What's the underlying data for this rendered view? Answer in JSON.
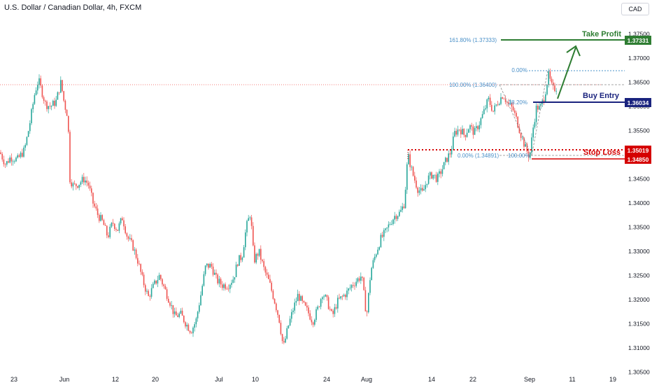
{
  "header": {
    "symbol_title": "U.S. Dollar / Canadian Dollar, 4h, FXCM",
    "currency_button": "CAD"
  },
  "colors": {
    "up": "#26a69a",
    "down": "#ef5350",
    "fib": "#4a90c8",
    "take_profit": "#2e7d32",
    "buy_entry": "#1a237e",
    "stop_loss": "#d50000"
  },
  "chart_data": {
    "type": "candlestick",
    "symbol": "USDCAD",
    "interval": "4h",
    "ylim": [
      1.3045,
      1.378
    ],
    "y_ticks": [
      "1.37500",
      "1.37000",
      "1.36500",
      "1.36000",
      "1.35500",
      "1.35000",
      "1.34500",
      "1.34000",
      "1.33500",
      "1.33000",
      "1.32500",
      "1.32000",
      "1.31500",
      "1.31000",
      "1.30500"
    ],
    "x_ticks": [
      "23",
      "Jun",
      "12",
      "20",
      "Jul",
      "10",
      "24",
      "Aug",
      "14",
      "22",
      "Sep",
      "11",
      "19"
    ],
    "price_path": [
      [
        0,
        1.3505
      ],
      [
        8,
        1.348
      ],
      [
        15,
        1.3495
      ],
      [
        25,
        1.349
      ],
      [
        35,
        1.351
      ],
      [
        42,
        1.356
      ],
      [
        50,
        1.363
      ],
      [
        55,
        1.3655
      ],
      [
        60,
        1.363
      ],
      [
        65,
        1.3605
      ],
      [
        72,
        1.36
      ],
      [
        80,
        1.361
      ],
      [
        87,
        1.365
      ],
      [
        92,
        1.3605
      ],
      [
        97,
        1.358
      ],
      [
        100,
        1.345
      ],
      [
        105,
        1.3435
      ],
      [
        112,
        1.344
      ],
      [
        120,
        1.345
      ],
      [
        126,
        1.344
      ],
      [
        133,
        1.34
      ],
      [
        140,
        1.3375
      ],
      [
        147,
        1.336
      ],
      [
        154,
        1.333
      ],
      [
        161,
        1.336
      ],
      [
        168,
        1.3345
      ],
      [
        175,
        1.337
      ],
      [
        182,
        1.333
      ],
      [
        190,
        1.331
      ],
      [
        197,
        1.328
      ],
      [
        204,
        1.324
      ],
      [
        212,
        1.3205
      ],
      [
        220,
        1.323
      ],
      [
        228,
        1.325
      ],
      [
        236,
        1.322
      ],
      [
        243,
        1.3195
      ],
      [
        250,
        1.3165
      ],
      [
        258,
        1.317
      ],
      [
        266,
        1.315
      ],
      [
        273,
        1.3135
      ],
      [
        280,
        1.3155
      ],
      [
        287,
        1.321
      ],
      [
        294,
        1.327
      ],
      [
        302,
        1.327
      ],
      [
        310,
        1.324
      ],
      [
        318,
        1.323
      ],
      [
        326,
        1.323
      ],
      [
        334,
        1.3245
      ],
      [
        340,
        1.328
      ],
      [
        346,
        1.329
      ],
      [
        352,
        1.335
      ],
      [
        358,
        1.338
      ],
      [
        363,
        1.328
      ],
      [
        370,
        1.33
      ],
      [
        378,
        1.326
      ],
      [
        385,
        1.3235
      ],
      [
        392,
        1.32
      ],
      [
        399,
        1.316
      ],
      [
        405,
        1.31
      ],
      [
        412,
        1.3145
      ],
      [
        419,
        1.318
      ],
      [
        426,
        1.321
      ],
      [
        433,
        1.319
      ],
      [
        440,
        1.3175
      ],
      [
        447,
        1.3155
      ],
      [
        454,
        1.318
      ],
      [
        461,
        1.3215
      ],
      [
        468,
        1.3195
      ],
      [
        475,
        1.3165
      ],
      [
        482,
        1.3195
      ],
      [
        489,
        1.3205
      ],
      [
        496,
        1.3215
      ],
      [
        503,
        1.323
      ],
      [
        510,
        1.324
      ],
      [
        517,
        1.325
      ],
      [
        524,
        1.3165
      ],
      [
        530,
        1.326
      ],
      [
        537,
        1.3295
      ],
      [
        544,
        1.3325
      ],
      [
        551,
        1.334
      ],
      [
        558,
        1.336
      ],
      [
        565,
        1.3375
      ],
      [
        572,
        1.338
      ],
      [
        578,
        1.34
      ],
      [
        583,
        1.35
      ],
      [
        590,
        1.346
      ],
      [
        597,
        1.343
      ],
      [
        604,
        1.342
      ],
      [
        611,
        1.345
      ],
      [
        618,
        1.346
      ],
      [
        625,
        1.345
      ],
      [
        632,
        1.347
      ],
      [
        638,
        1.349
      ],
      [
        644,
        1.3505
      ],
      [
        650,
        1.3545
      ],
      [
        657,
        1.3555
      ],
      [
        664,
        1.354
      ],
      [
        671,
        1.356
      ],
      [
        678,
        1.3545
      ],
      [
        685,
        1.3565
      ],
      [
        692,
        1.359
      ],
      [
        698,
        1.3615
      ],
      [
        705,
        1.359
      ],
      [
        712,
        1.361
      ],
      [
        719,
        1.3625
      ],
      [
        726,
        1.3605
      ],
      [
        733,
        1.3595
      ],
      [
        739,
        1.357
      ],
      [
        745,
        1.354
      ],
      [
        751,
        1.3515
      ],
      [
        757,
        1.3495
      ],
      [
        762,
        1.3555
      ],
      [
        767,
        1.36
      ],
      [
        772,
        1.3595
      ],
      [
        778,
        1.362
      ],
      [
        784,
        1.3665
      ],
      [
        790,
        1.3635
      ],
      [
        796,
        1.364
      ]
    ]
  },
  "levels": {
    "take_profit": {
      "label": "Take Profit",
      "price_tag": "1.37331"
    },
    "buy_entry": {
      "label": "Buy Entry",
      "price_tag": "1.36034"
    },
    "stop_loss": {
      "label": "Stop Loss",
      "price_tag": "1.35019"
    },
    "last_low": {
      "price_tag": "1.34850"
    }
  },
  "fib": {
    "ext_161": "161.80% (1.37333)",
    "top_0": "0.00%",
    "ret_100": "100.00% (1.36400)",
    "ret_38": "38.20%",
    "ret_0": "0.00% (1.34891)",
    "ret_100b": "100.00%"
  }
}
